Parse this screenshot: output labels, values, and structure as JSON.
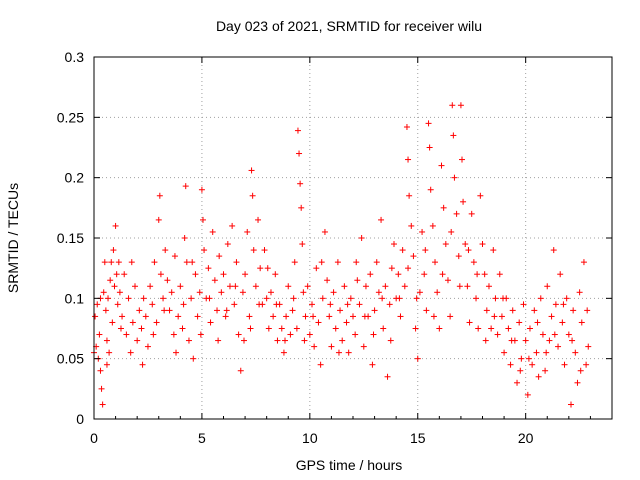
{
  "chart_data": {
    "type": "scatter",
    "title": "Day 023 of 2021, SRMTID for receiver wilu",
    "xlabel": "GPS time / hours",
    "ylabel": "SRMTID / TECUs",
    "xlim": [
      0,
      24
    ],
    "ylim": [
      0,
      0.3
    ],
    "x_ticks": [
      0,
      5,
      10,
      15,
      20
    ],
    "x_tick_labels": [
      "0",
      "5",
      "10",
      "15",
      "20"
    ],
    "y_ticks": [
      0,
      0.05,
      0.1,
      0.15,
      0.2,
      0.25,
      0.3
    ],
    "y_tick_labels": [
      "0",
      "0.05",
      "0.1",
      "0.15",
      "0.2",
      "0.25",
      "0.3"
    ],
    "grid": true,
    "marker": "+",
    "series": [
      {
        "name": "SRMTID",
        "color": "#ff0000",
        "points": [
          [
            0.0,
            0.055
          ],
          [
            0.05,
            0.085
          ],
          [
            0.1,
            0.06
          ],
          [
            0.15,
            0.095
          ],
          [
            0.2,
            0.05
          ],
          [
            0.25,
            0.07
          ],
          [
            0.3,
            0.04
          ],
          [
            0.35,
            0.025
          ],
          [
            0.4,
            0.012
          ],
          [
            0.45,
            0.105
          ],
          [
            0.5,
            0.13
          ],
          [
            0.55,
            0.09
          ],
          [
            0.6,
            0.065
          ],
          [
            0.65,
            0.1
          ],
          [
            0.7,
            0.055
          ],
          [
            0.75,
            0.115
          ],
          [
            0.8,
            0.13
          ],
          [
            0.85,
            0.08
          ],
          [
            0.9,
            0.14
          ],
          [
            0.95,
            0.11
          ],
          [
            1.0,
            0.16
          ],
          [
            1.05,
            0.12
          ],
          [
            1.1,
            0.095
          ],
          [
            1.15,
            0.13
          ],
          [
            1.2,
            0.105
          ],
          [
            1.3,
            0.085
          ],
          [
            1.4,
            0.12
          ],
          [
            1.5,
            0.07
          ],
          [
            1.6,
            0.1
          ],
          [
            1.7,
            0.055
          ],
          [
            1.8,
            0.08
          ],
          [
            1.9,
            0.11
          ],
          [
            2.0,
            0.065
          ],
          [
            2.1,
            0.09
          ],
          [
            2.2,
            0.075
          ],
          [
            2.3,
            0.1
          ],
          [
            2.4,
            0.085
          ],
          [
            2.5,
            0.06
          ],
          [
            2.6,
            0.11
          ],
          [
            2.7,
            0.095
          ],
          [
            2.8,
            0.13
          ],
          [
            2.9,
            0.08
          ],
          [
            3.0,
            0.165
          ],
          [
            3.05,
            0.185
          ],
          [
            3.1,
            0.12
          ],
          [
            3.2,
            0.1
          ],
          [
            3.3,
            0.14
          ],
          [
            3.4,
            0.115
          ],
          [
            3.5,
            0.09
          ],
          [
            3.6,
            0.105
          ],
          [
            3.7,
            0.07
          ],
          [
            3.8,
            0.055
          ],
          [
            3.9,
            0.085
          ],
          [
            4.0,
            0.11
          ],
          [
            4.1,
            0.075
          ],
          [
            4.2,
            0.15
          ],
          [
            4.25,
            0.193
          ],
          [
            4.3,
            0.13
          ],
          [
            4.4,
            0.065
          ],
          [
            4.5,
            0.1
          ],
          [
            4.6,
            0.05
          ],
          [
            4.7,
            0.12
          ],
          [
            4.8,
            0.085
          ],
          [
            4.9,
            0.105
          ],
          [
            5.0,
            0.19
          ],
          [
            5.05,
            0.165
          ],
          [
            5.1,
            0.14
          ],
          [
            5.2,
            0.1
          ],
          [
            5.3,
            0.125
          ],
          [
            5.4,
            0.08
          ],
          [
            5.5,
            0.155
          ],
          [
            5.6,
            0.115
          ],
          [
            5.7,
            0.09
          ],
          [
            5.8,
            0.135
          ],
          [
            5.9,
            0.105
          ],
          [
            6.0,
            0.12
          ],
          [
            6.1,
            0.085
          ],
          [
            6.2,
            0.145
          ],
          [
            6.3,
            0.11
          ],
          [
            6.4,
            0.16
          ],
          [
            6.5,
            0.095
          ],
          [
            6.6,
            0.13
          ],
          [
            6.7,
            0.07
          ],
          [
            6.8,
            0.04
          ],
          [
            6.9,
            0.105
          ],
          [
            7.0,
            0.12
          ],
          [
            7.1,
            0.155
          ],
          [
            7.2,
            0.085
          ],
          [
            7.3,
            0.206
          ],
          [
            7.35,
            0.185
          ],
          [
            7.4,
            0.14
          ],
          [
            7.5,
            0.11
          ],
          [
            7.6,
            0.165
          ],
          [
            7.7,
            0.125
          ],
          [
            7.8,
            0.095
          ],
          [
            7.9,
            0.14
          ],
          [
            8.0,
            0.1
          ],
          [
            8.1,
            0.075
          ],
          [
            8.2,
            0.105
          ],
          [
            8.3,
            0.085
          ],
          [
            8.4,
            0.12
          ],
          [
            8.5,
            0.065
          ],
          [
            8.6,
            0.095
          ],
          [
            8.7,
            0.075
          ],
          [
            8.8,
            0.055
          ],
          [
            8.9,
            0.085
          ],
          [
            9.0,
            0.11
          ],
          [
            9.1,
            0.07
          ],
          [
            9.2,
            0.09
          ],
          [
            9.3,
            0.13
          ],
          [
            9.4,
            0.075
          ],
          [
            9.45,
            0.239
          ],
          [
            9.5,
            0.22
          ],
          [
            9.55,
            0.195
          ],
          [
            9.6,
            0.175
          ],
          [
            9.65,
            0.145
          ],
          [
            9.7,
            0.105
          ],
          [
            9.8,
            0.085
          ],
          [
            9.9,
            0.11
          ],
          [
            10.0,
            0.07
          ],
          [
            10.1,
            0.095
          ],
          [
            10.2,
            0.06
          ],
          [
            10.3,
            0.125
          ],
          [
            10.4,
            0.08
          ],
          [
            10.5,
            0.045
          ],
          [
            10.6,
            0.1
          ],
          [
            10.7,
            0.155
          ],
          [
            10.8,
            0.115
          ],
          [
            10.9,
            0.085
          ],
          [
            11.0,
            0.06
          ],
          [
            11.1,
            0.105
          ],
          [
            11.2,
            0.075
          ],
          [
            11.3,
            0.13
          ],
          [
            11.4,
            0.09
          ],
          [
            11.5,
            0.065
          ],
          [
            11.6,
            0.11
          ],
          [
            11.7,
            0.08
          ],
          [
            11.8,
            0.055
          ],
          [
            11.9,
            0.1
          ],
          [
            12.0,
            0.085
          ],
          [
            12.1,
            0.07
          ],
          [
            12.2,
            0.115
          ],
          [
            12.3,
            0.095
          ],
          [
            12.4,
            0.15
          ],
          [
            12.5,
            0.06
          ],
          [
            12.6,
            0.11
          ],
          [
            12.7,
            0.085
          ],
          [
            12.8,
            0.12
          ],
          [
            12.9,
            0.045
          ],
          [
            13.0,
            0.09
          ],
          [
            13.1,
            0.13
          ],
          [
            13.2,
            0.105
          ],
          [
            13.3,
            0.165
          ],
          [
            13.4,
            0.075
          ],
          [
            13.5,
            0.11
          ],
          [
            13.6,
            0.035
          ],
          [
            13.7,
            0.095
          ],
          [
            13.8,
            0.125
          ],
          [
            13.9,
            0.145
          ],
          [
            14.0,
            0.1
          ],
          [
            14.1,
            0.12
          ],
          [
            14.2,
            0.085
          ],
          [
            14.3,
            0.14
          ],
          [
            14.4,
            0.11
          ],
          [
            14.5,
            0.242
          ],
          [
            14.55,
            0.215
          ],
          [
            14.6,
            0.185
          ],
          [
            14.7,
            0.16
          ],
          [
            14.8,
            0.135
          ],
          [
            14.9,
            0.075
          ],
          [
            15.0,
            0.05
          ],
          [
            15.1,
            0.105
          ],
          [
            15.2,
            0.155
          ],
          [
            15.3,
            0.12
          ],
          [
            15.4,
            0.09
          ],
          [
            15.5,
            0.245
          ],
          [
            15.55,
            0.225
          ],
          [
            15.6,
            0.19
          ],
          [
            15.7,
            0.16
          ],
          [
            15.8,
            0.13
          ],
          [
            15.9,
            0.105
          ],
          [
            16.0,
            0.075
          ],
          [
            16.1,
            0.21
          ],
          [
            16.2,
            0.175
          ],
          [
            16.3,
            0.145
          ],
          [
            16.4,
            0.115
          ],
          [
            16.5,
            0.085
          ],
          [
            16.6,
            0.26
          ],
          [
            16.65,
            0.235
          ],
          [
            16.7,
            0.2
          ],
          [
            16.8,
            0.17
          ],
          [
            16.9,
            0.135
          ],
          [
            17.0,
            0.26
          ],
          [
            17.05,
            0.215
          ],
          [
            17.1,
            0.18
          ],
          [
            17.2,
            0.145
          ],
          [
            17.3,
            0.11
          ],
          [
            17.4,
            0.08
          ],
          [
            17.5,
            0.17
          ],
          [
            17.6,
            0.13
          ],
          [
            17.7,
            0.1
          ],
          [
            17.8,
            0.075
          ],
          [
            17.9,
            0.185
          ],
          [
            18.0,
            0.145
          ],
          [
            18.1,
            0.12
          ],
          [
            18.2,
            0.09
          ],
          [
            18.3,
            0.11
          ],
          [
            18.4,
            0.075
          ],
          [
            18.5,
            0.14
          ],
          [
            18.6,
            0.1
          ],
          [
            18.7,
            0.07
          ],
          [
            18.8,
            0.12
          ],
          [
            18.9,
            0.085
          ],
          [
            19.0,
            0.055
          ],
          [
            19.1,
            0.1
          ],
          [
            19.2,
            0.075
          ],
          [
            19.3,
            0.045
          ],
          [
            19.4,
            0.09
          ],
          [
            19.5,
            0.065
          ],
          [
            19.6,
            0.03
          ],
          [
            19.7,
            0.08
          ],
          [
            19.8,
            0.05
          ],
          [
            19.9,
            0.095
          ],
          [
            20.0,
            0.065
          ],
          [
            20.1,
            0.02
          ],
          [
            20.2,
            0.075
          ],
          [
            20.3,
            0.045
          ],
          [
            20.4,
            0.09
          ],
          [
            20.5,
            0.055
          ],
          [
            20.6,
            0.035
          ],
          [
            20.7,
            0.1
          ],
          [
            20.8,
            0.07
          ],
          [
            20.9,
            0.04
          ],
          [
            21.0,
            0.11
          ],
          [
            21.1,
            0.065
          ],
          [
            21.2,
            0.085
          ],
          [
            21.3,
            0.14
          ],
          [
            21.4,
            0.095
          ],
          [
            21.5,
            0.06
          ],
          [
            21.6,
            0.12
          ],
          [
            21.7,
            0.08
          ],
          [
            21.8,
            0.045
          ],
          [
            21.9,
            0.1
          ],
          [
            22.0,
            0.07
          ],
          [
            22.1,
            0.012
          ],
          [
            22.2,
            0.09
          ],
          [
            22.3,
            0.055
          ],
          [
            22.4,
            0.03
          ],
          [
            22.5,
            0.105
          ],
          [
            22.6,
            0.08
          ],
          [
            22.7,
            0.13
          ],
          [
            22.8,
            0.045
          ],
          [
            22.9,
            0.06
          ],
          [
            0.3,
            0.1
          ],
          [
            0.6,
            0.045
          ],
          [
            1.25,
            0.075
          ],
          [
            1.75,
            0.13
          ],
          [
            2.25,
            0.045
          ],
          [
            2.75,
            0.07
          ],
          [
            3.25,
            0.09
          ],
          [
            3.75,
            0.135
          ],
          [
            4.15,
            0.095
          ],
          [
            4.55,
            0.13
          ],
          [
            4.95,
            0.07
          ],
          [
            5.35,
            0.1
          ],
          [
            5.75,
            0.065
          ],
          [
            6.15,
            0.09
          ],
          [
            6.55,
            0.11
          ],
          [
            6.95,
            0.065
          ],
          [
            7.25,
            0.075
          ],
          [
            7.65,
            0.095
          ],
          [
            8.05,
            0.125
          ],
          [
            8.45,
            0.095
          ],
          [
            8.85,
            0.065
          ],
          [
            9.25,
            0.1
          ],
          [
            9.75,
            0.065
          ],
          [
            10.15,
            0.085
          ],
          [
            10.55,
            0.13
          ],
          [
            10.95,
            0.095
          ],
          [
            11.35,
            0.055
          ],
          [
            11.75,
            0.095
          ],
          [
            12.15,
            0.13
          ],
          [
            12.55,
            0.085
          ],
          [
            12.95,
            0.07
          ],
          [
            13.35,
            0.1
          ],
          [
            13.75,
            0.065
          ],
          [
            14.15,
            0.1
          ],
          [
            14.55,
            0.125
          ],
          [
            14.95,
            0.1
          ],
          [
            15.35,
            0.14
          ],
          [
            15.75,
            0.085
          ],
          [
            16.15,
            0.12
          ],
          [
            16.55,
            0.155
          ],
          [
            16.95,
            0.11
          ],
          [
            17.35,
            0.14
          ],
          [
            17.75,
            0.12
          ],
          [
            18.15,
            0.065
          ],
          [
            18.55,
            0.085
          ],
          [
            18.95,
            0.1
          ],
          [
            19.35,
            0.065
          ],
          [
            19.75,
            0.04
          ],
          [
            20.15,
            0.05
          ],
          [
            20.55,
            0.08
          ],
          [
            20.95,
            0.055
          ],
          [
            21.35,
            0.07
          ],
          [
            21.75,
            0.095
          ],
          [
            22.15,
            0.065
          ],
          [
            22.55,
            0.04
          ],
          [
            22.85,
            0.09
          ]
        ]
      }
    ]
  }
}
